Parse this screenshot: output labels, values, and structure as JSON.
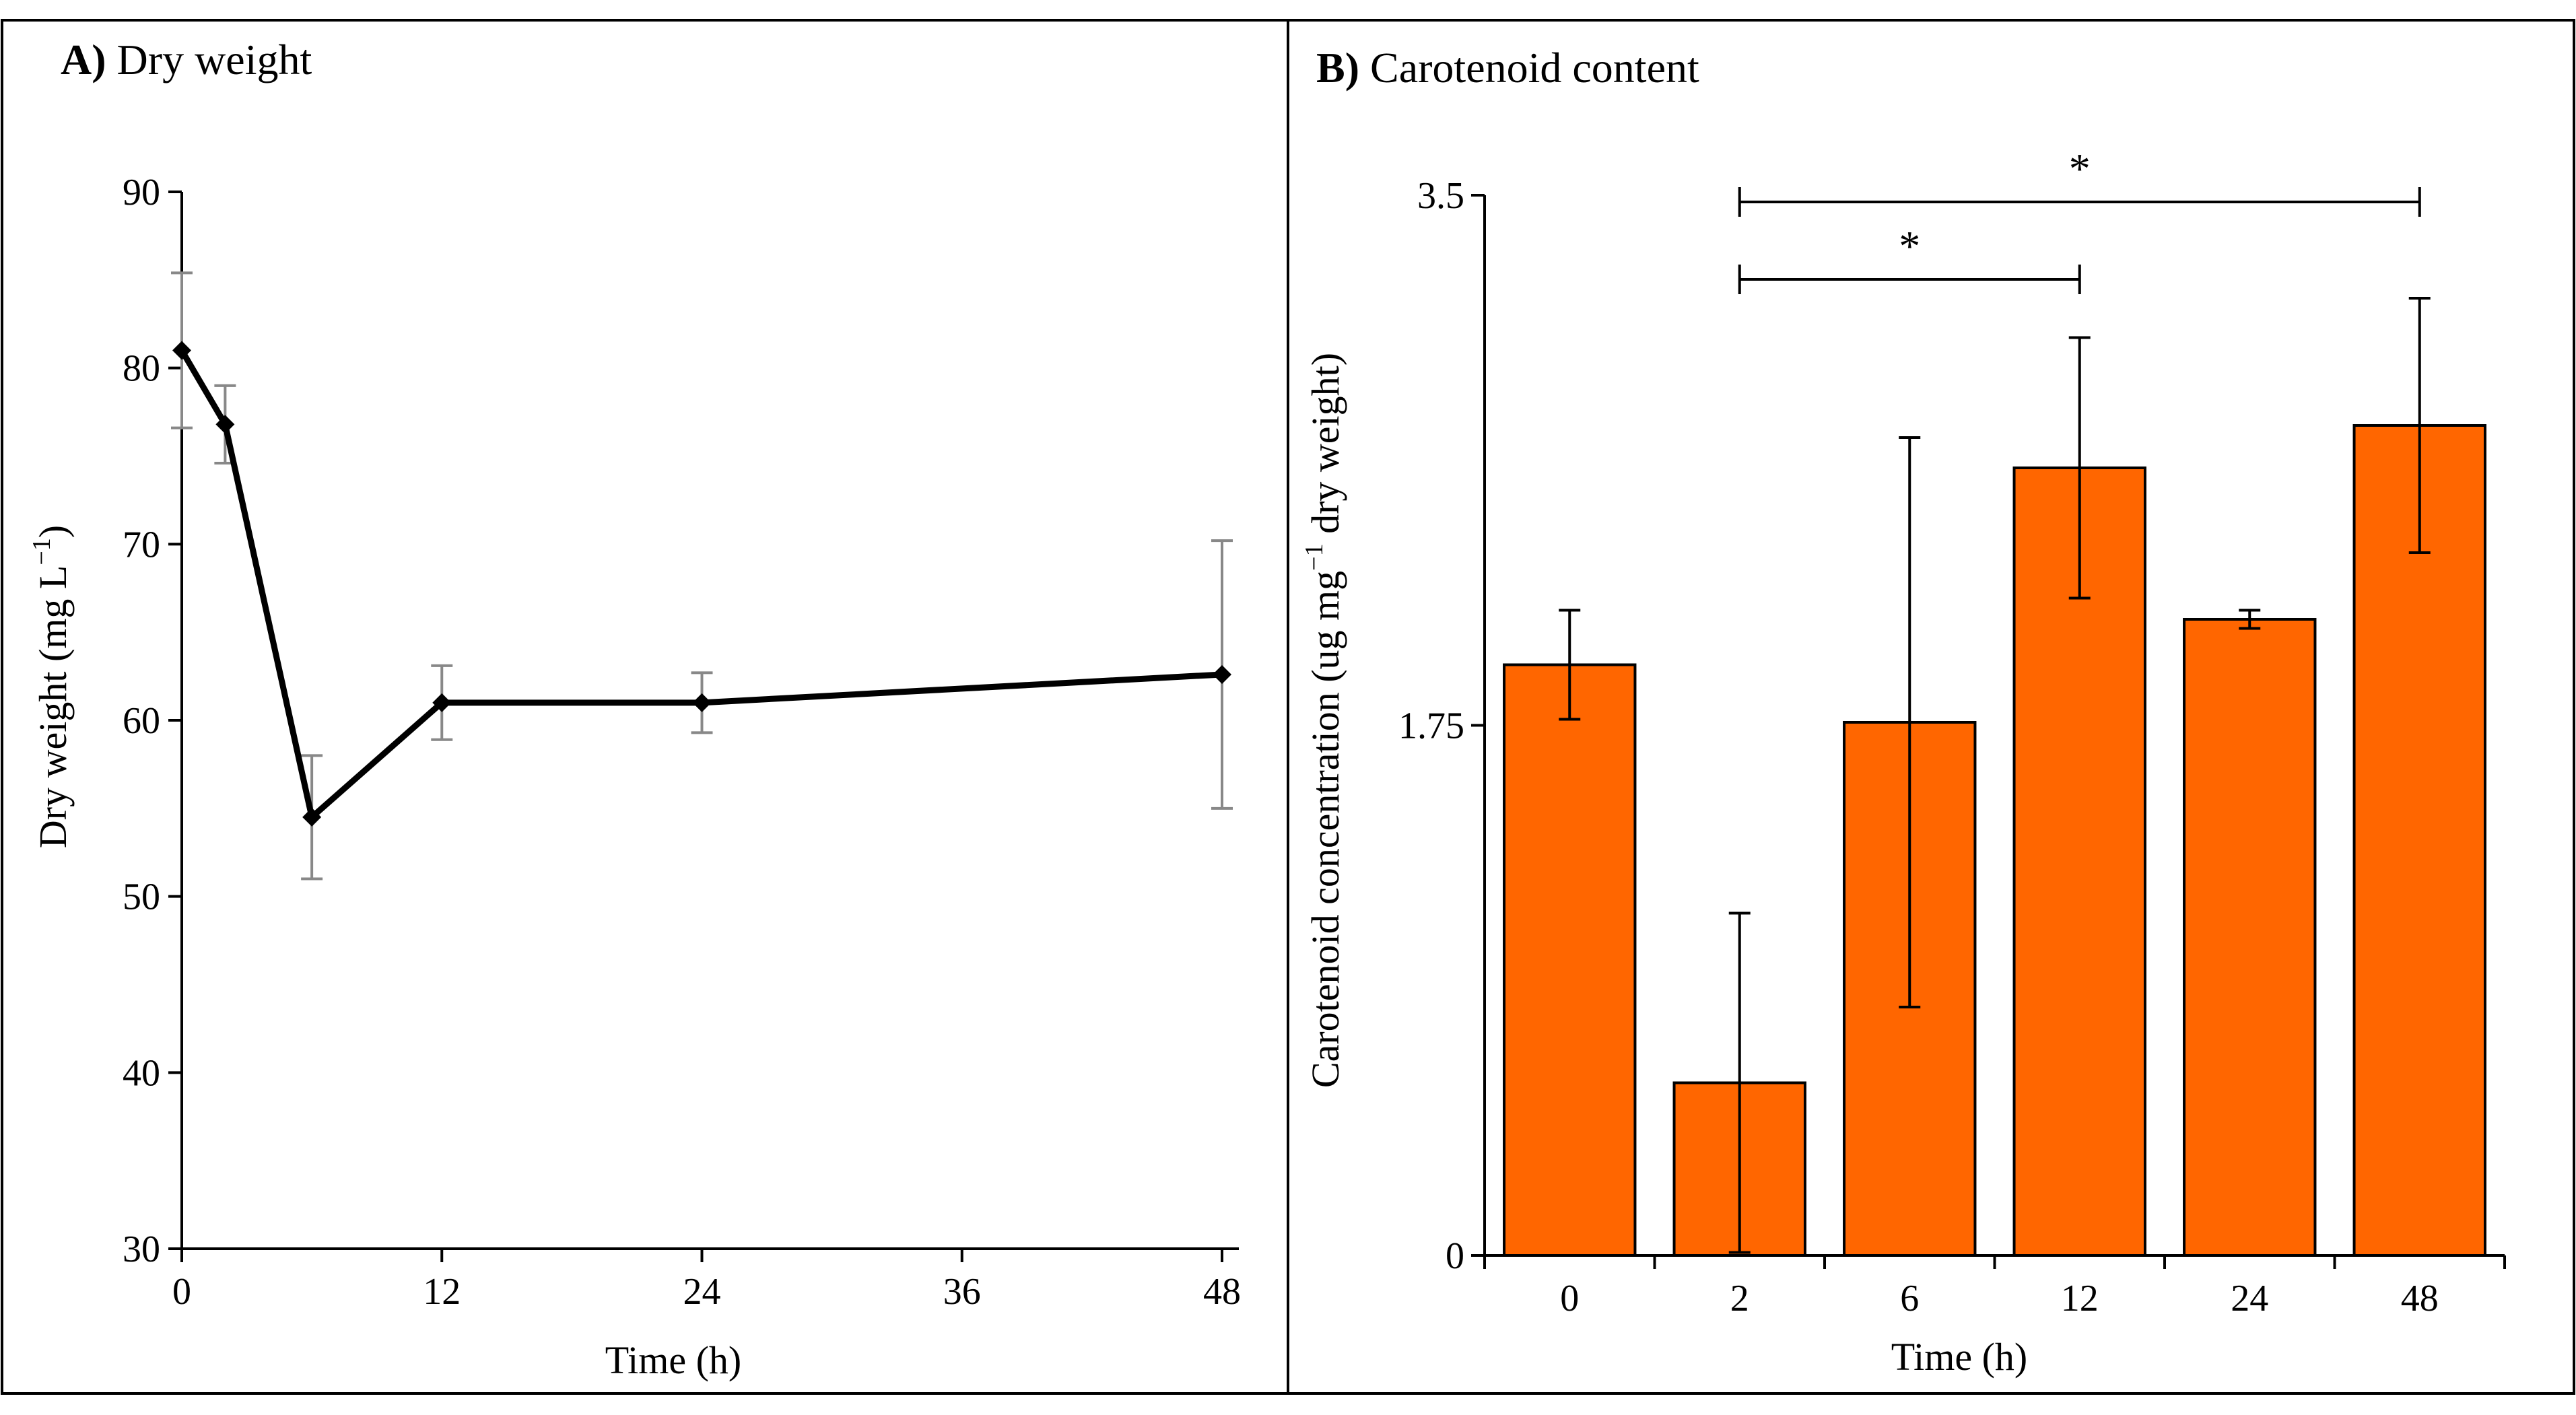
{
  "chart_data": [
    {
      "type": "line",
      "panel_label": "A)",
      "title": "Dry weight",
      "xlabel": "Time (h)",
      "ylabel": "Dry weight (mg L",
      "ylabel_sup": "−1",
      "ylabel_end": ")",
      "xlim": [
        0,
        48
      ],
      "ylim": [
        30,
        90
      ],
      "xticks": [
        "0",
        "12",
        "24",
        "36",
        "48"
      ],
      "yticks": [
        "30",
        "40",
        "50",
        "60",
        "70",
        "80",
        "90"
      ],
      "grid": false,
      "series": [
        {
          "x": [
            0,
            2,
            6,
            12,
            24,
            48
          ],
          "y": [
            81,
            76.8,
            54.5,
            61,
            61,
            62.6
          ],
          "err": [
            4.4,
            2.2,
            3.5,
            2.1,
            1.7,
            7.6
          ],
          "color": "#000000",
          "error_color": "#888888"
        }
      ]
    },
    {
      "type": "bar",
      "panel_label": "B)",
      "title": "Carotenoid content",
      "xlabel": "Time (h)",
      "ylabel": "Carotenoid concentration (ug mg",
      "ylabel_sup": "−1",
      "ylabel_end": " dry weight)",
      "categories": [
        "0",
        "2",
        "6",
        "12",
        "24",
        "48"
      ],
      "ylim": [
        0,
        3.5
      ],
      "yticks": [
        "0",
        "1.75",
        "3.5"
      ],
      "grid": false,
      "series": [
        {
          "values": [
            1.95,
            0.57,
            1.76,
            2.6,
            2.1,
            2.74
          ],
          "err": [
            0.18,
            0.56,
            0.94,
            0.43,
            0.03,
            0.42
          ],
          "color": "#ff6600"
        }
      ],
      "significance": [
        {
          "from": "2",
          "to": "12",
          "label": "*"
        },
        {
          "from": "2",
          "to": "48",
          "label": "*"
        }
      ]
    }
  ]
}
